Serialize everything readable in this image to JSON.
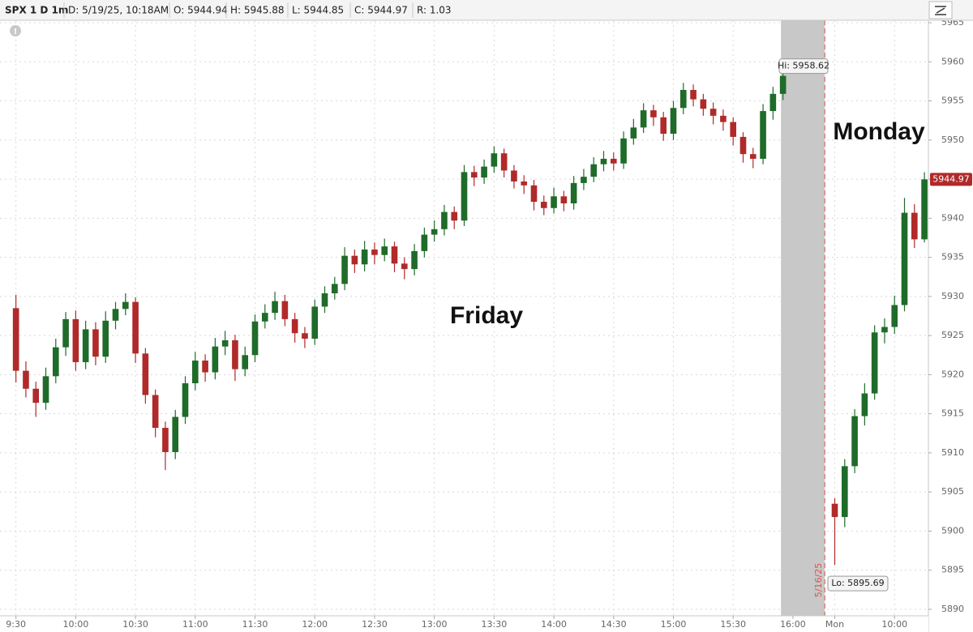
{
  "chart_data": {
    "type": "candlestick",
    "header": [
      "SPX 1 D 1m",
      "D: 5/19/25, 10:18AM",
      "O: 5944.94",
      "H: 5945.88",
      "L: 5944.85",
      "C: 5944.97",
      "R: 1.03"
    ],
    "up_color": "#1f6b2a",
    "down_color": "#b02a2a",
    "grid": true,
    "ylim": [
      5890,
      5965
    ],
    "yticks": [
      5890,
      5895,
      5900,
      5905,
      5910,
      5915,
      5920,
      5925,
      5930,
      5935,
      5940,
      5945,
      5950,
      5955,
      5960,
      5965
    ],
    "xlim": [
      -8,
      458
    ],
    "xticks": [
      {
        "value": 0,
        "label": "9:30"
      },
      {
        "value": 30,
        "label": "10:00"
      },
      {
        "value": 60,
        "label": "10:30"
      },
      {
        "value": 90,
        "label": "11:00"
      },
      {
        "value": 120,
        "label": "11:30"
      },
      {
        "value": 150,
        "label": "12:00"
      },
      {
        "value": 180,
        "label": "12:30"
      },
      {
        "value": 210,
        "label": "13:00"
      },
      {
        "value": 240,
        "label": "13:30"
      },
      {
        "value": 270,
        "label": "14:00"
      },
      {
        "value": 300,
        "label": "14:30"
      },
      {
        "value": 330,
        "label": "15:00"
      },
      {
        "value": 360,
        "label": "15:30"
      },
      {
        "value": 390,
        "label": "16:00"
      },
      {
        "value": 411,
        "label": "Mon"
      },
      {
        "value": 441,
        "label": "10:00"
      }
    ],
    "shaded_region": [
      384,
      406
    ],
    "session_break": {
      "x": 406,
      "label": "5/16/25"
    },
    "candles": {
      "x": [
        0,
        5,
        10,
        15,
        20,
        25,
        30,
        35,
        40,
        45,
        50,
        55,
        60,
        65,
        70,
        75,
        80,
        85,
        90,
        95,
        100,
        105,
        110,
        115,
        120,
        125,
        130,
        135,
        140,
        145,
        150,
        155,
        160,
        165,
        170,
        175,
        180,
        185,
        190,
        195,
        200,
        205,
        210,
        215,
        220,
        225,
        230,
        235,
        240,
        245,
        250,
        255,
        260,
        265,
        270,
        275,
        280,
        285,
        290,
        295,
        300,
        305,
        310,
        315,
        320,
        325,
        330,
        335,
        340,
        345,
        350,
        355,
        360,
        365,
        370,
        375,
        380,
        385,
        411,
        416,
        421,
        426,
        431,
        436,
        441,
        446,
        451,
        456
      ],
      "open": [
        5928.5,
        5920.5,
        5918.2,
        5916.4,
        5919.8,
        5923.5,
        5927.1,
        5921.6,
        5925.8,
        5922.3,
        5926.9,
        5928.4,
        5929.3,
        5922.7,
        5917.4,
        5913.2,
        5910.1,
        5914.6,
        5918.9,
        5921.8,
        5920.3,
        5923.6,
        5924.4,
        5920.7,
        5922.5,
        5926.8,
        5927.9,
        5929.4,
        5927.1,
        5925.3,
        5924.6,
        5928.7,
        5930.4,
        5931.6,
        5935.2,
        5934.1,
        5936.0,
        5935.3,
        5936.4,
        5934.2,
        5933.5,
        5935.8,
        5937.9,
        5938.6,
        5940.8,
        5939.7,
        5945.9,
        5945.2,
        5946.6,
        5948.3,
        5946.1,
        5944.7,
        5944.2,
        5942.1,
        5941.3,
        5942.8,
        5941.9,
        5944.5,
        5945.3,
        5946.9,
        5947.6,
        5947.0,
        5950.2,
        5951.6,
        5953.8,
        5952.9,
        5950.8,
        5954.1,
        5956.4,
        5955.2,
        5954.0,
        5953.1,
        5952.3,
        5950.4,
        5948.2,
        5947.6,
        5953.7,
        5955.9,
        5903.5,
        5901.8,
        5908.3,
        5914.7,
        5917.6,
        5925.4,
        5926.1,
        5928.9,
        5940.7,
        5937.3
      ],
      "high": [
        5930.2,
        5921.7,
        5919.1,
        5920.9,
        5924.6,
        5928.0,
        5928.2,
        5926.9,
        5926.7,
        5928.1,
        5929.3,
        5930.4,
        5929.9,
        5923.4,
        5918.1,
        5914.0,
        5915.5,
        5919.8,
        5922.9,
        5922.6,
        5924.7,
        5925.6,
        5925.1,
        5923.6,
        5927.7,
        5929.0,
        5930.6,
        5930.2,
        5927.9,
        5926.1,
        5929.6,
        5931.3,
        5932.5,
        5936.3,
        5936.0,
        5937.1,
        5936.9,
        5937.4,
        5937.0,
        5935.0,
        5936.7,
        5938.8,
        5939.7,
        5941.7,
        5941.5,
        5946.8,
        5946.7,
        5947.5,
        5949.2,
        5948.9,
        5946.8,
        5945.5,
        5944.9,
        5942.9,
        5943.9,
        5943.5,
        5945.4,
        5946.3,
        5947.8,
        5948.6,
        5948.4,
        5951.1,
        5952.7,
        5954.7,
        5954.5,
        5953.6,
        5955.0,
        5957.3,
        5957.1,
        5955.9,
        5954.8,
        5953.9,
        5952.9,
        5951.0,
        5949.0,
        5954.6,
        5956.8,
        5958.62,
        5904.2,
        5909.2,
        5915.6,
        5918.9,
        5926.3,
        5927.2,
        5930.1,
        5942.6,
        5941.8,
        5945.88
      ],
      "low": [
        5919.0,
        5917.1,
        5914.6,
        5915.5,
        5918.9,
        5922.4,
        5920.5,
        5920.7,
        5921.2,
        5921.5,
        5925.8,
        5927.6,
        5921.5,
        5916.3,
        5912.0,
        5907.8,
        5909.2,
        5913.7,
        5918.0,
        5919.1,
        5919.4,
        5922.5,
        5919.2,
        5919.8,
        5921.6,
        5925.9,
        5927.0,
        5926.2,
        5924.1,
        5923.4,
        5923.8,
        5927.9,
        5929.6,
        5930.8,
        5933.0,
        5933.2,
        5934.1,
        5934.5,
        5933.1,
        5932.2,
        5932.7,
        5935.0,
        5937.0,
        5937.8,
        5938.6,
        5939.0,
        5944.1,
        5944.4,
        5945.8,
        5945.2,
        5943.8,
        5943.1,
        5941.0,
        5940.4,
        5940.6,
        5940.9,
        5941.1,
        5943.6,
        5944.6,
        5946.0,
        5946.1,
        5946.3,
        5949.4,
        5950.9,
        5951.8,
        5949.9,
        5950.0,
        5953.3,
        5954.3,
        5953.1,
        5952.0,
        5951.2,
        5949.3,
        5947.1,
        5946.4,
        5946.9,
        5952.6,
        5955.1,
        5895.69,
        5900.5,
        5907.4,
        5913.5,
        5916.8,
        5924.0,
        5925.2,
        5928.1,
        5936.2,
        5936.9
      ],
      "close": [
        5920.5,
        5918.2,
        5916.4,
        5919.8,
        5923.5,
        5927.1,
        5921.6,
        5925.8,
        5922.3,
        5926.9,
        5928.4,
        5929.3,
        5922.7,
        5917.4,
        5913.2,
        5910.1,
        5914.6,
        5918.9,
        5921.8,
        5920.3,
        5923.6,
        5924.4,
        5920.7,
        5922.5,
        5926.8,
        5927.9,
        5929.4,
        5927.1,
        5925.3,
        5924.6,
        5928.7,
        5930.4,
        5931.6,
        5935.2,
        5934.1,
        5936.0,
        5935.3,
        5936.4,
        5934.2,
        5933.5,
        5935.8,
        5937.9,
        5938.6,
        5940.8,
        5939.7,
        5945.9,
        5945.2,
        5946.6,
        5948.3,
        5946.1,
        5944.7,
        5944.2,
        5942.1,
        5941.3,
        5942.8,
        5941.9,
        5944.5,
        5945.3,
        5946.9,
        5947.6,
        5947.0,
        5950.2,
        5951.6,
        5953.8,
        5952.9,
        5950.8,
        5954.1,
        5956.4,
        5955.2,
        5954.0,
        5953.1,
        5952.3,
        5950.4,
        5948.2,
        5947.6,
        5953.7,
        5955.9,
        5958.2,
        5901.8,
        5908.3,
        5914.7,
        5917.6,
        5925.4,
        5926.1,
        5928.9,
        5940.7,
        5937.3,
        5944.97
      ]
    },
    "last_price": 5944.97,
    "hi_label": "Hi: 5958.62",
    "lo_label": "Lo: 5895.69",
    "annotations": [
      "Friday",
      "Monday"
    ]
  }
}
